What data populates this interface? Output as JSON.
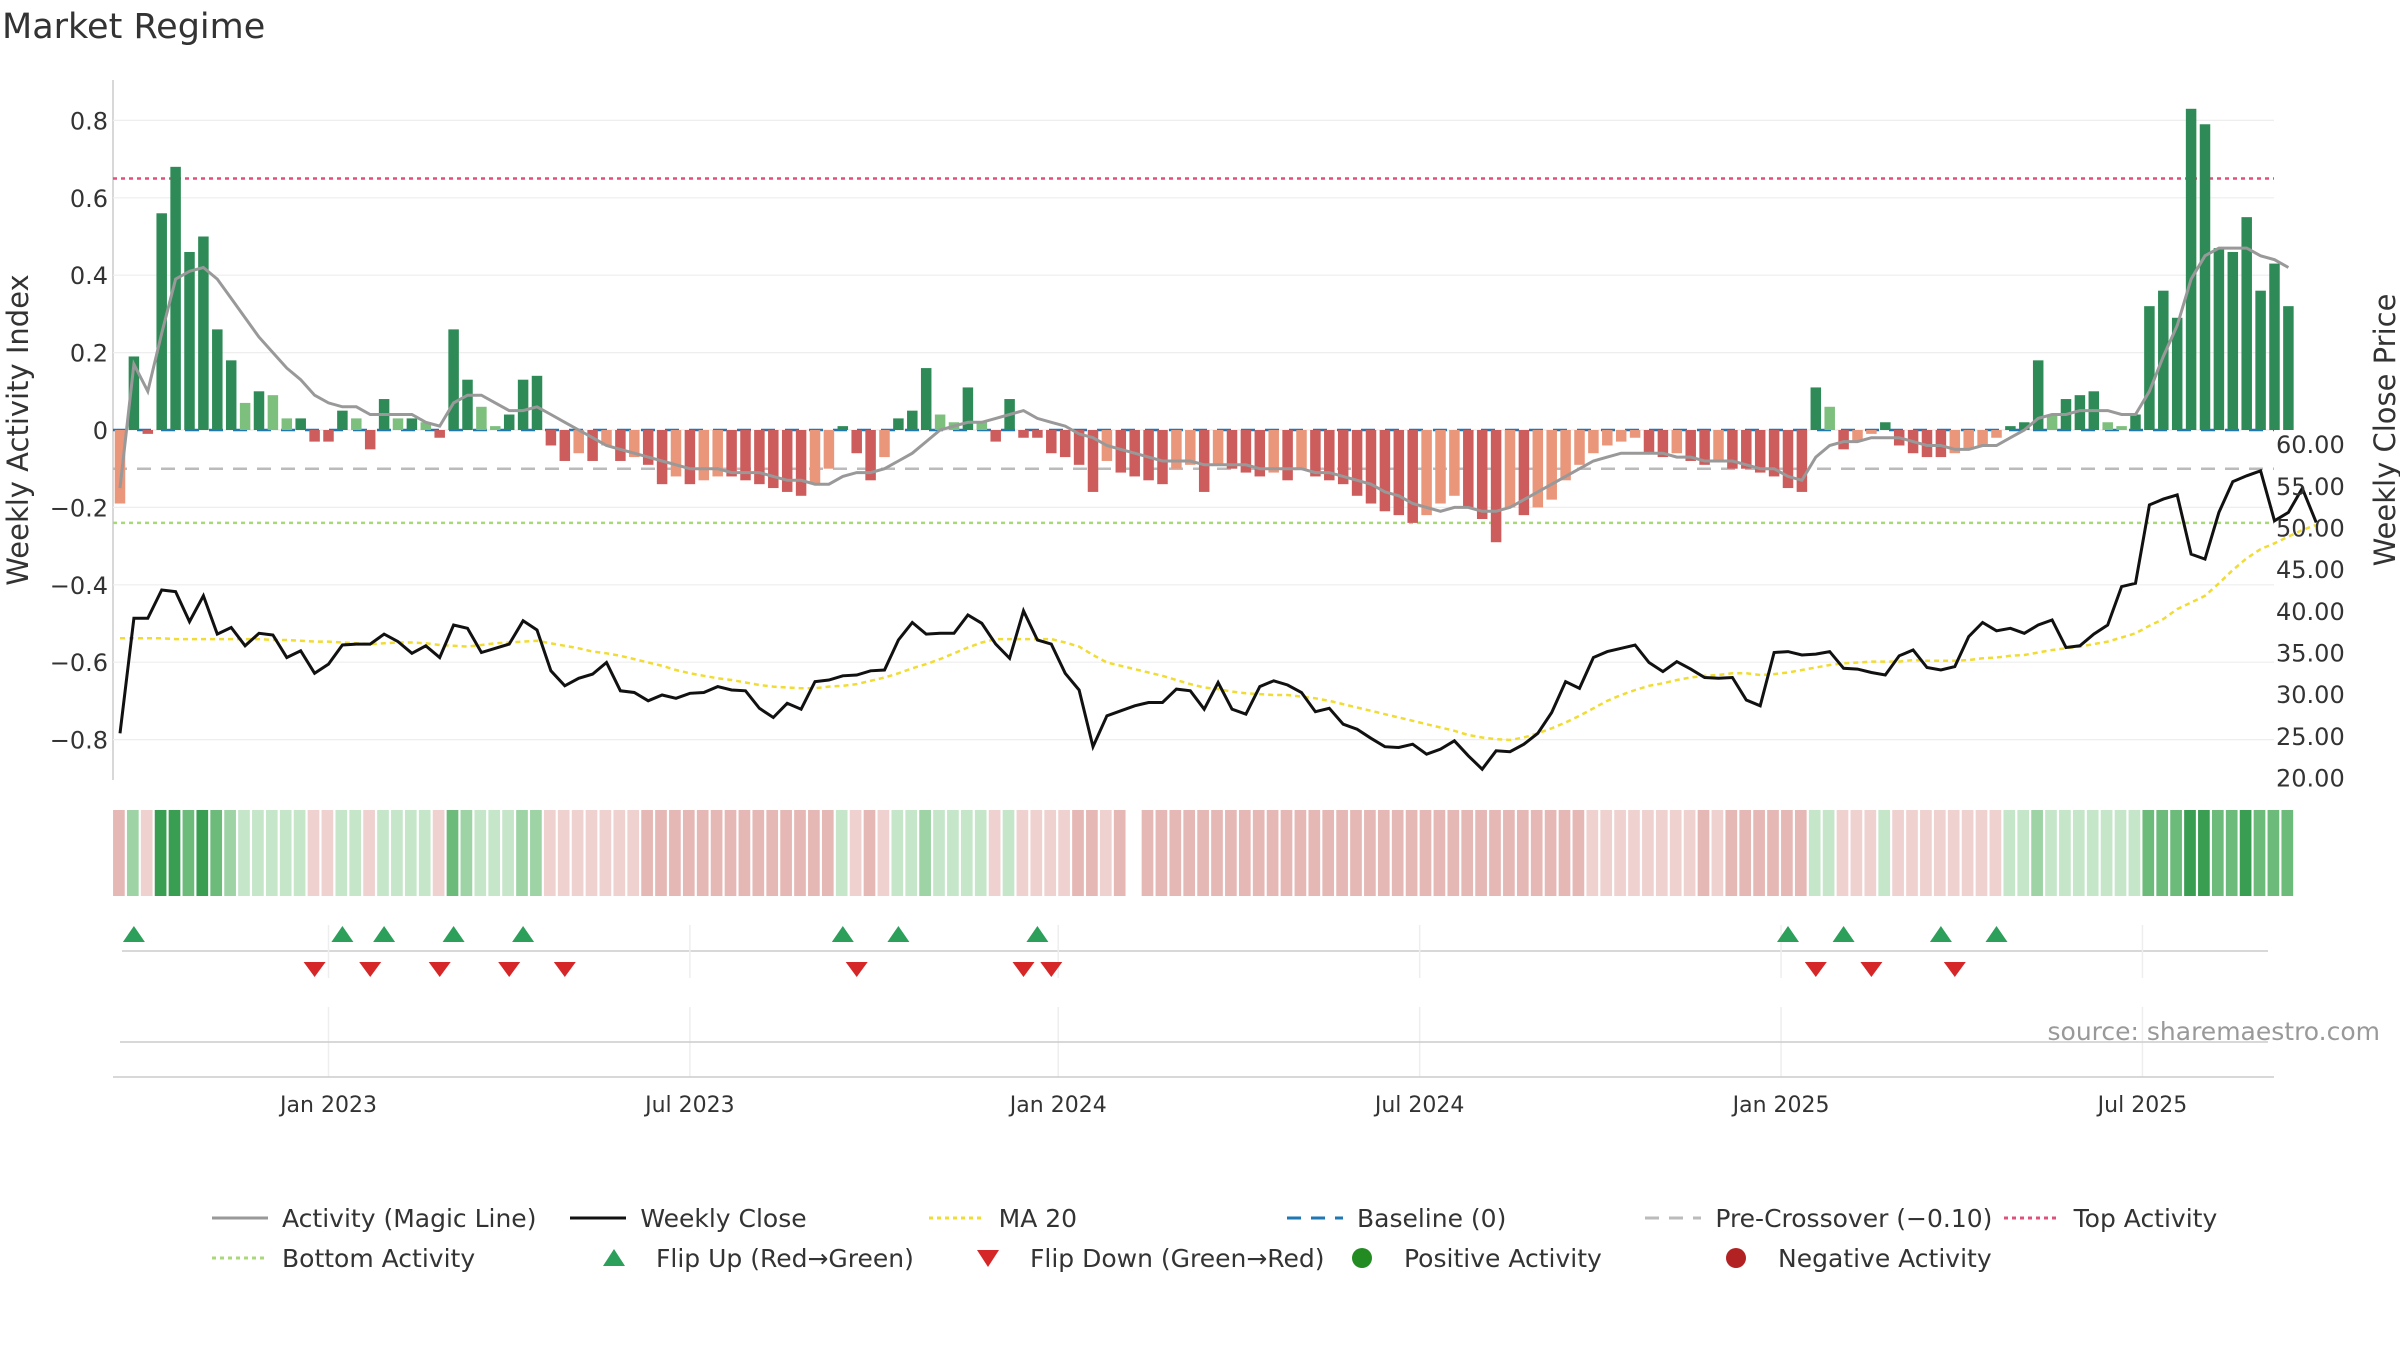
{
  "title": "Market Regime",
  "source": "source: sharemaestro.com",
  "colors": {
    "bar_pos_strong": "#2e8b57",
    "bar_pos_weak": "#7dbf7d",
    "bar_neg_strong": "#cd5c5c",
    "bar_neg_weak": "#e9967a",
    "magic_line": "#999999",
    "weekly_close": "#111111",
    "ma20": "#f0dc32",
    "baseline": "#1f77b4",
    "pre_crossover": "#bbbbbb",
    "top_activity": "#e0507a",
    "bottom_activity": "#a8d878",
    "flip_up": "#2ca05a",
    "flip_down": "#d62728",
    "positive_activity": "#228b22",
    "negative_activity": "#b22222"
  },
  "legend": [
    {
      "key": "magic",
      "label": "Activity (Magic Line)"
    },
    {
      "key": "close",
      "label": "Weekly Close"
    },
    {
      "key": "ma20",
      "label": "MA 20"
    },
    {
      "key": "baseline",
      "label": "Baseline (0)"
    },
    {
      "key": "precross",
      "label": "Pre-Crossover (−0.10)"
    },
    {
      "key": "top",
      "label": "Top Activity"
    },
    {
      "key": "bottom",
      "label": "Bottom Activity"
    },
    {
      "key": "flipup",
      "label": "Flip Up (Red→Green)"
    },
    {
      "key": "flipdown",
      "label": "Flip Down (Green→Red)"
    },
    {
      "key": "posact",
      "label": "Positive Activity"
    },
    {
      "key": "negact",
      "label": "Negative Activity"
    }
  ],
  "chart_data": {
    "type": "bar",
    "title": "Market Regime",
    "ylabel": "Weekly Activity Index",
    "y2label": "Weekly Close Price",
    "ylim": [
      -0.9,
      0.9
    ],
    "y2lim": [
      18.5,
      61.3
    ],
    "yticks": [
      "0.8",
      "0.6",
      "0.4",
      "0.2",
      "0",
      "−0.2",
      "−0.4",
      "−0.6",
      "−0.8"
    ],
    "ytick_values": [
      0.8,
      0.6,
      0.4,
      0.2,
      0,
      -0.2,
      -0.4,
      -0.6,
      -0.8
    ],
    "y2ticks": [
      "60.00",
      "55.00",
      "50.00",
      "45.00",
      "40.00",
      "35.00",
      "30.00",
      "25.00",
      "20.00"
    ],
    "y2tick_values": [
      60,
      55,
      50,
      45,
      40,
      35,
      30,
      25,
      20
    ],
    "xticks": [
      "Jan 2023",
      "Jul 2023",
      "Jan 2024",
      "Jul 2024",
      "Jan 2025",
      "Jul 2025"
    ],
    "xtick_weeks": [
      15,
      41,
      67.5,
      93.5,
      119.5,
      145.5
    ],
    "reference_lines": {
      "baseline": 0,
      "pre_crossover": -0.1,
      "top_activity": 0.65,
      "bottom_activity": -0.24
    },
    "grid": true,
    "legend_position": "bottom",
    "start_date": "2022-10-02",
    "week_count": 157,
    "activity": [
      -0.19,
      0.19,
      -0.01,
      0.56,
      0.68,
      0.46,
      0.5,
      0.26,
      0.18,
      0.07,
      0.1,
      0.09,
      0.03,
      0.03,
      -0.03,
      -0.03,
      0.05,
      0.03,
      -0.05,
      0.08,
      0.03,
      0.03,
      0.02,
      -0.02,
      0.26,
      0.13,
      0.06,
      0.01,
      0.04,
      0.13,
      0.14,
      -0.04,
      -0.08,
      -0.06,
      -0.08,
      -0.04,
      -0.08,
      -0.07,
      -0.09,
      -0.14,
      -0.12,
      -0.14,
      -0.13,
      -0.12,
      -0.12,
      -0.13,
      -0.14,
      -0.15,
      -0.16,
      -0.17,
      -0.14,
      -0.1,
      0.01,
      -0.06,
      -0.13,
      -0.07,
      0.03,
      0.05,
      0.16,
      0.04,
      0.02,
      0.11,
      0.02,
      -0.03,
      0.08,
      -0.02,
      -0.02,
      -0.06,
      -0.07,
      -0.09,
      -0.16,
      -0.08,
      -0.11,
      -0.12,
      -0.13,
      -0.14,
      -0.1,
      -0.09,
      -0.16,
      -0.09,
      -0.1,
      -0.11,
      -0.12,
      -0.11,
      -0.13,
      -0.1,
      -0.12,
      -0.13,
      -0.14,
      -0.17,
      -0.19,
      -0.21,
      -0.22,
      -0.24,
      -0.22,
      -0.19,
      -0.17,
      -0.2,
      -0.23,
      -0.29,
      -0.2,
      -0.22,
      -0.2,
      -0.18,
      -0.13,
      -0.09,
      -0.06,
      -0.04,
      -0.03,
      -0.02,
      -0.06,
      -0.07,
      -0.06,
      -0.08,
      -0.09,
      -0.08,
      -0.1,
      -0.1,
      -0.11,
      -0.12,
      -0.15,
      -0.16,
      0.11,
      0.06,
      -0.05,
      -0.03,
      -0.01,
      0.02,
      -0.04,
      -0.06,
      -0.07,
      -0.07,
      -0.06,
      -0.05,
      -0.04,
      -0.02,
      0.01,
      0.02,
      0.18,
      0.04,
      0.08,
      0.09,
      0.1,
      0.02,
      0.01,
      0.04,
      0.32,
      0.36,
      0.29,
      0.83,
      0.79,
      0.47,
      0.46,
      0.55,
      0.36,
      0.43,
      0.32
    ],
    "magic_line": [
      -0.15,
      0.17,
      0.1,
      0.25,
      0.39,
      0.41,
      0.42,
      0.39,
      0.34,
      0.29,
      0.24,
      0.2,
      0.16,
      0.13,
      0.09,
      0.07,
      0.06,
      0.06,
      0.04,
      0.04,
      0.04,
      0.04,
      0.02,
      0.01,
      0.07,
      0.09,
      0.09,
      0.07,
      0.05,
      0.05,
      0.06,
      0.04,
      0.02,
      0.0,
      -0.02,
      -0.04,
      -0.05,
      -0.06,
      -0.07,
      -0.08,
      -0.09,
      -0.1,
      -0.1,
      -0.1,
      -0.11,
      -0.11,
      -0.11,
      -0.12,
      -0.13,
      -0.13,
      -0.14,
      -0.14,
      -0.12,
      -0.11,
      -0.11,
      -0.1,
      -0.08,
      -0.06,
      -0.03,
      0.0,
      0.01,
      0.02,
      0.02,
      0.03,
      0.04,
      0.05,
      0.03,
      0.02,
      0.01,
      -0.01,
      -0.02,
      -0.04,
      -0.05,
      -0.06,
      -0.07,
      -0.08,
      -0.08,
      -0.08,
      -0.09,
      -0.09,
      -0.09,
      -0.09,
      -0.1,
      -0.1,
      -0.1,
      -0.1,
      -0.11,
      -0.11,
      -0.12,
      -0.13,
      -0.14,
      -0.16,
      -0.17,
      -0.19,
      -0.2,
      -0.21,
      -0.2,
      -0.2,
      -0.21,
      -0.21,
      -0.2,
      -0.18,
      -0.16,
      -0.14,
      -0.12,
      -0.1,
      -0.08,
      -0.07,
      -0.06,
      -0.06,
      -0.06,
      -0.06,
      -0.07,
      -0.07,
      -0.08,
      -0.08,
      -0.08,
      -0.09,
      -0.1,
      -0.1,
      -0.12,
      -0.13,
      -0.07,
      -0.04,
      -0.03,
      -0.03,
      -0.02,
      -0.02,
      -0.02,
      -0.03,
      -0.04,
      -0.04,
      -0.05,
      -0.05,
      -0.04,
      -0.04,
      -0.02,
      0.0,
      0.03,
      0.04,
      0.04,
      0.05,
      0.05,
      0.05,
      0.04,
      0.04,
      0.1,
      0.19,
      0.27,
      0.39,
      0.45,
      0.47,
      0.47,
      0.47,
      0.45,
      0.44,
      0.42
    ],
    "weekly_close": [
      25.3,
      39.1,
      39.1,
      42.5,
      42.3,
      38.7,
      41.8,
      37.2,
      38.0,
      35.8,
      37.3,
      37.1,
      34.4,
      35.2,
      32.5,
      33.6,
      35.9,
      36.0,
      36.0,
      37.2,
      36.3,
      34.9,
      35.8,
      34.4,
      38.3,
      37.9,
      35.0,
      35.5,
      36.0,
      38.8,
      37.7,
      32.8,
      31.0,
      31.9,
      32.4,
      33.8,
      30.4,
      30.2,
      29.2,
      29.9,
      29.5,
      30.1,
      30.2,
      30.9,
      30.5,
      30.4,
      28.3,
      27.2,
      28.9,
      28.2,
      31.5,
      31.7,
      32.2,
      32.3,
      32.8,
      32.9,
      36.5,
      38.6,
      37.2,
      37.3,
      37.3,
      39.5,
      38.5,
      36.0,
      34.3,
      40.0,
      36.5,
      36.0,
      32.5,
      30.5,
      23.7,
      27.4,
      28.0,
      28.6,
      29.0,
      29.0,
      30.6,
      30.4,
      28.2,
      31.4,
      28.2,
      27.6,
      30.9,
      31.6,
      31.1,
      30.2,
      27.9,
      28.3,
      26.4,
      25.8,
      24.7,
      23.7,
      23.6,
      24.0,
      22.8,
      23.4,
      24.4,
      22.6,
      21.0,
      23.2,
      23.1,
      24.0,
      25.3,
      27.8,
      31.5,
      30.7,
      34.4,
      35.1,
      35.5,
      35.9,
      33.8,
      32.7,
      33.9,
      33.0,
      32.0,
      31.9,
      32.0,
      29.3,
      28.6,
      35.0,
      35.1,
      34.7,
      34.8,
      35.1,
      33.1,
      33.0,
      32.6,
      32.3,
      34.6,
      35.3,
      33.2,
      32.9,
      33.3,
      36.9,
      38.6,
      37.6,
      37.9,
      37.3,
      38.3,
      38.9,
      35.6,
      35.8,
      37.2,
      38.3,
      42.9,
      43.3,
      52.7,
      53.4,
      53.9,
      46.8,
      46.2,
      51.8,
      55.5,
      56.2,
      56.8,
      50.8,
      51.8,
      54.7,
      50.6
    ],
    "ma20": [
      36.7,
      36.7,
      36.7,
      36.7,
      36.6,
      36.6,
      36.6,
      36.6,
      36.6,
      36.6,
      36.6,
      36.5,
      36.5,
      36.4,
      36.3,
      36.3,
      36.2,
      36.1,
      36.0,
      36.1,
      36.2,
      36.2,
      36.1,
      35.9,
      35.8,
      35.7,
      35.9,
      36.1,
      36.2,
      36.3,
      36.4,
      36.1,
      35.8,
      35.5,
      35.1,
      34.9,
      34.6,
      34.2,
      33.8,
      33.4,
      32.9,
      32.5,
      32.2,
      31.9,
      31.7,
      31.4,
      31.1,
      30.9,
      30.8,
      30.7,
      30.7,
      30.9,
      31.0,
      31.2,
      31.6,
      32.0,
      32.5,
      33.1,
      33.6,
      34.2,
      34.9,
      35.6,
      36.2,
      36.6,
      36.6,
      36.6,
      36.6,
      36.6,
      36.2,
      35.7,
      34.7,
      33.8,
      33.4,
      33.0,
      32.6,
      32.2,
      31.7,
      31.2,
      30.8,
      30.6,
      30.3,
      30.1,
      30.0,
      29.9,
      29.9,
      29.7,
      29.5,
      29.2,
      28.8,
      28.4,
      28.0,
      27.6,
      27.2,
      26.8,
      26.4,
      26.0,
      25.6,
      25.1,
      24.8,
      24.6,
      24.5,
      24.8,
      25.3,
      25.9,
      26.6,
      27.4,
      28.3,
      29.2,
      29.9,
      30.5,
      31.0,
      31.3,
      31.7,
      32.0,
      32.2,
      32.3,
      32.5,
      32.5,
      32.3,
      32.4,
      32.6,
      32.9,
      33.2,
      33.5,
      33.7,
      33.8,
      33.9,
      33.9,
      33.9,
      34.1,
      34.0,
      34.0,
      34.0,
      34.1,
      34.3,
      34.4,
      34.6,
      34.7,
      35.0,
      35.3,
      35.5,
      35.7,
      36.0,
      36.3,
      36.8,
      37.3,
      38.2,
      39.0,
      40.2,
      41.0,
      41.8,
      43.3,
      44.9,
      46.3,
      47.4,
      48.1,
      48.9,
      49.7,
      50.3
    ],
    "flip_up_weeks": [
      1,
      16,
      19,
      24,
      29,
      52,
      56,
      66,
      120,
      124,
      131,
      135
    ],
    "flip_down_weeks": [
      14,
      18,
      23,
      28,
      32,
      53,
      65,
      67,
      122,
      126,
      132
    ],
    "regime_gap_weeks": [
      73
    ]
  }
}
